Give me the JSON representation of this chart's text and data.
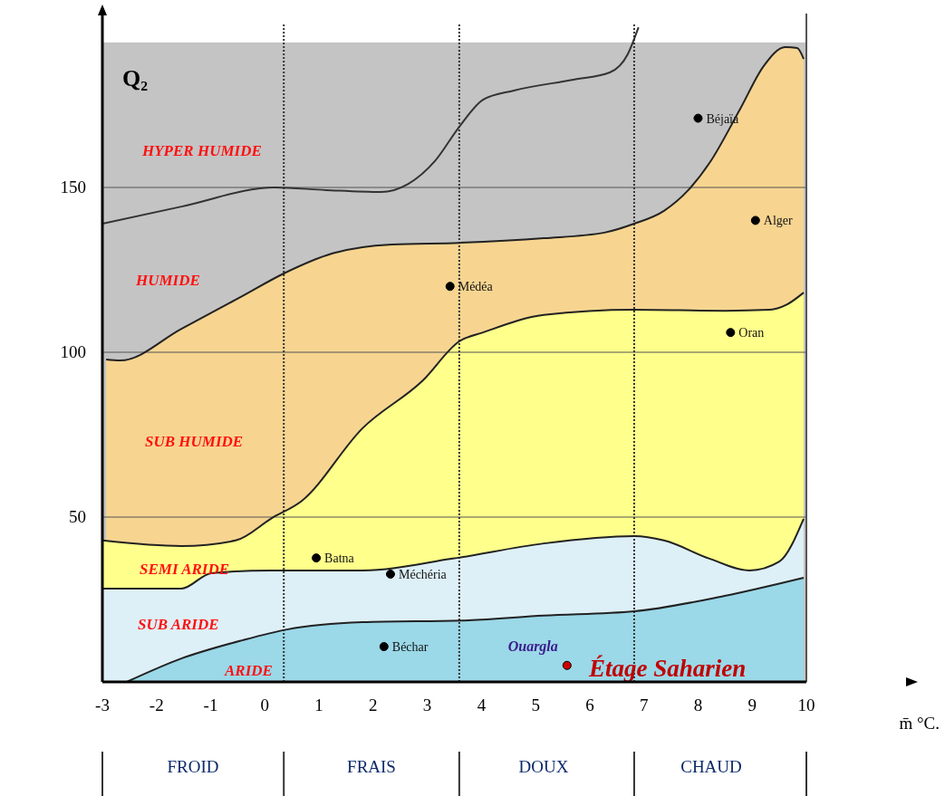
{
  "chart_data": {
    "type": "area",
    "xlabel": "m̄ °C.",
    "ylabel": "Q₂",
    "xlim": [
      -3,
      10
    ],
    "ylim": [
      0,
      200
    ],
    "xticks": [
      -3,
      -2,
      -1,
      0,
      1,
      2,
      3,
      4,
      5,
      6,
      7,
      8,
      9,
      10
    ],
    "yticks": [
      50,
      100,
      150
    ],
    "grid": "y",
    "bands": [
      {
        "axis": "y",
        "from": 0,
        "to": 194,
        "color": "#c4c4c4"
      }
    ],
    "ref_lines": [
      {
        "axis": "x",
        "value": 0.35,
        "line_style": "dotted"
      },
      {
        "axis": "x",
        "value": 3.59,
        "line_style": "dotted"
      },
      {
        "axis": "x",
        "value": 6.82,
        "line_style": "dotted"
      }
    ],
    "series": [
      {
        "color": "#f7d591",
        "x": [
          -2.93,
          -2.67,
          -1.54,
          -0.42,
          0.35,
          1.25,
          2.35,
          3.59,
          5.15,
          6.27,
          6.82,
          7.37,
          7.82,
          8.21,
          8.78,
          9.21,
          9.61,
          9.83,
          9.95
        ],
        "values": [
          97.8,
          97.5,
          107.1,
          117,
          123.9,
          130,
          132.7,
          133.2,
          134.6,
          136.3,
          139,
          142.9,
          149.2,
          157.4,
          173.9,
          186.8,
          192.6,
          192.3,
          189
        ]
      },
      {
        "color": "#ffff8c",
        "x": [
          -3,
          -1.54,
          -0.54,
          0.13,
          0.68,
          1.8,
          2.92,
          3.59,
          4.03,
          5.15,
          6.82,
          8.49,
          9.33,
          9.62,
          9.95
        ],
        "values": [
          42.9,
          41.2,
          42.9,
          49.7,
          54.9,
          76.9,
          91.5,
          103.3,
          106,
          111.3,
          112.9,
          112.6,
          112.9,
          114.3,
          118.1
        ]
      },
      {
        "color": "#def0f7",
        "x": [
          -3,
          -1.54,
          -0.99,
          0.13,
          1.8,
          3.47,
          5.15,
          6.82,
          7.37,
          8.21,
          8.95,
          9.5,
          9.95
        ],
        "values": [
          28.3,
          28.3,
          33,
          33.8,
          33.8,
          37.4,
          42,
          44.2,
          42.9,
          37.4,
          33.8,
          36.5,
          49.5
        ]
      },
      {
        "color": "#9bd8e8",
        "x": [
          -2.55,
          -1.54,
          -0.42,
          0.41,
          1.8,
          3.76,
          5.15,
          6.82,
          8.49,
          9.95
        ],
        "values": [
          0,
          7.1,
          12.6,
          15.9,
          18.1,
          18.7,
          20.1,
          21.4,
          26.1,
          31.6
        ]
      },
      {
        "type": "line",
        "color": "#333333",
        "x": [
          -3,
          -1.54,
          0.18,
          1.13,
          2.14,
          2.64,
          3.14,
          3.59,
          4.03,
          4.6,
          5.7,
          6.37,
          6.7,
          6.9
        ],
        "values": [
          139,
          144.2,
          150,
          149.2,
          148.6,
          151,
          158,
          168.4,
          176.6,
          179.4,
          182.7,
          184.9,
          190.4,
          198.6
        ]
      },
      {
        "type": "scatter",
        "marker": "circle",
        "color": "#000000",
        "x": [
          8.0,
          9.06,
          3.42,
          8.6,
          0.95,
          2.32,
          2.2
        ],
        "values": [
          171,
          140,
          120,
          106,
          37.6,
          32.7,
          10.7
        ],
        "value_labels": [
          "Béjaïa",
          "Alger",
          "Médéa",
          "Oran",
          "Batna",
          "Méchéria",
          "Béchar"
        ]
      },
      {
        "type": "scatter",
        "marker": "circle",
        "color": "#cc0000",
        "x": [
          5.58
        ],
        "values": [
          5
        ],
        "value_labels": [
          "Ouargla"
        ]
      }
    ],
    "annotations": [
      "HYPER HUMIDE",
      "HUMIDE",
      "SUB HUMIDE",
      "SEMI ARIDE",
      "SUB ARIDE",
      "ARIDE",
      "Étage Saharien",
      "FROID",
      "FRAIS",
      "DOUX",
      "CHAUD"
    ]
  }
}
